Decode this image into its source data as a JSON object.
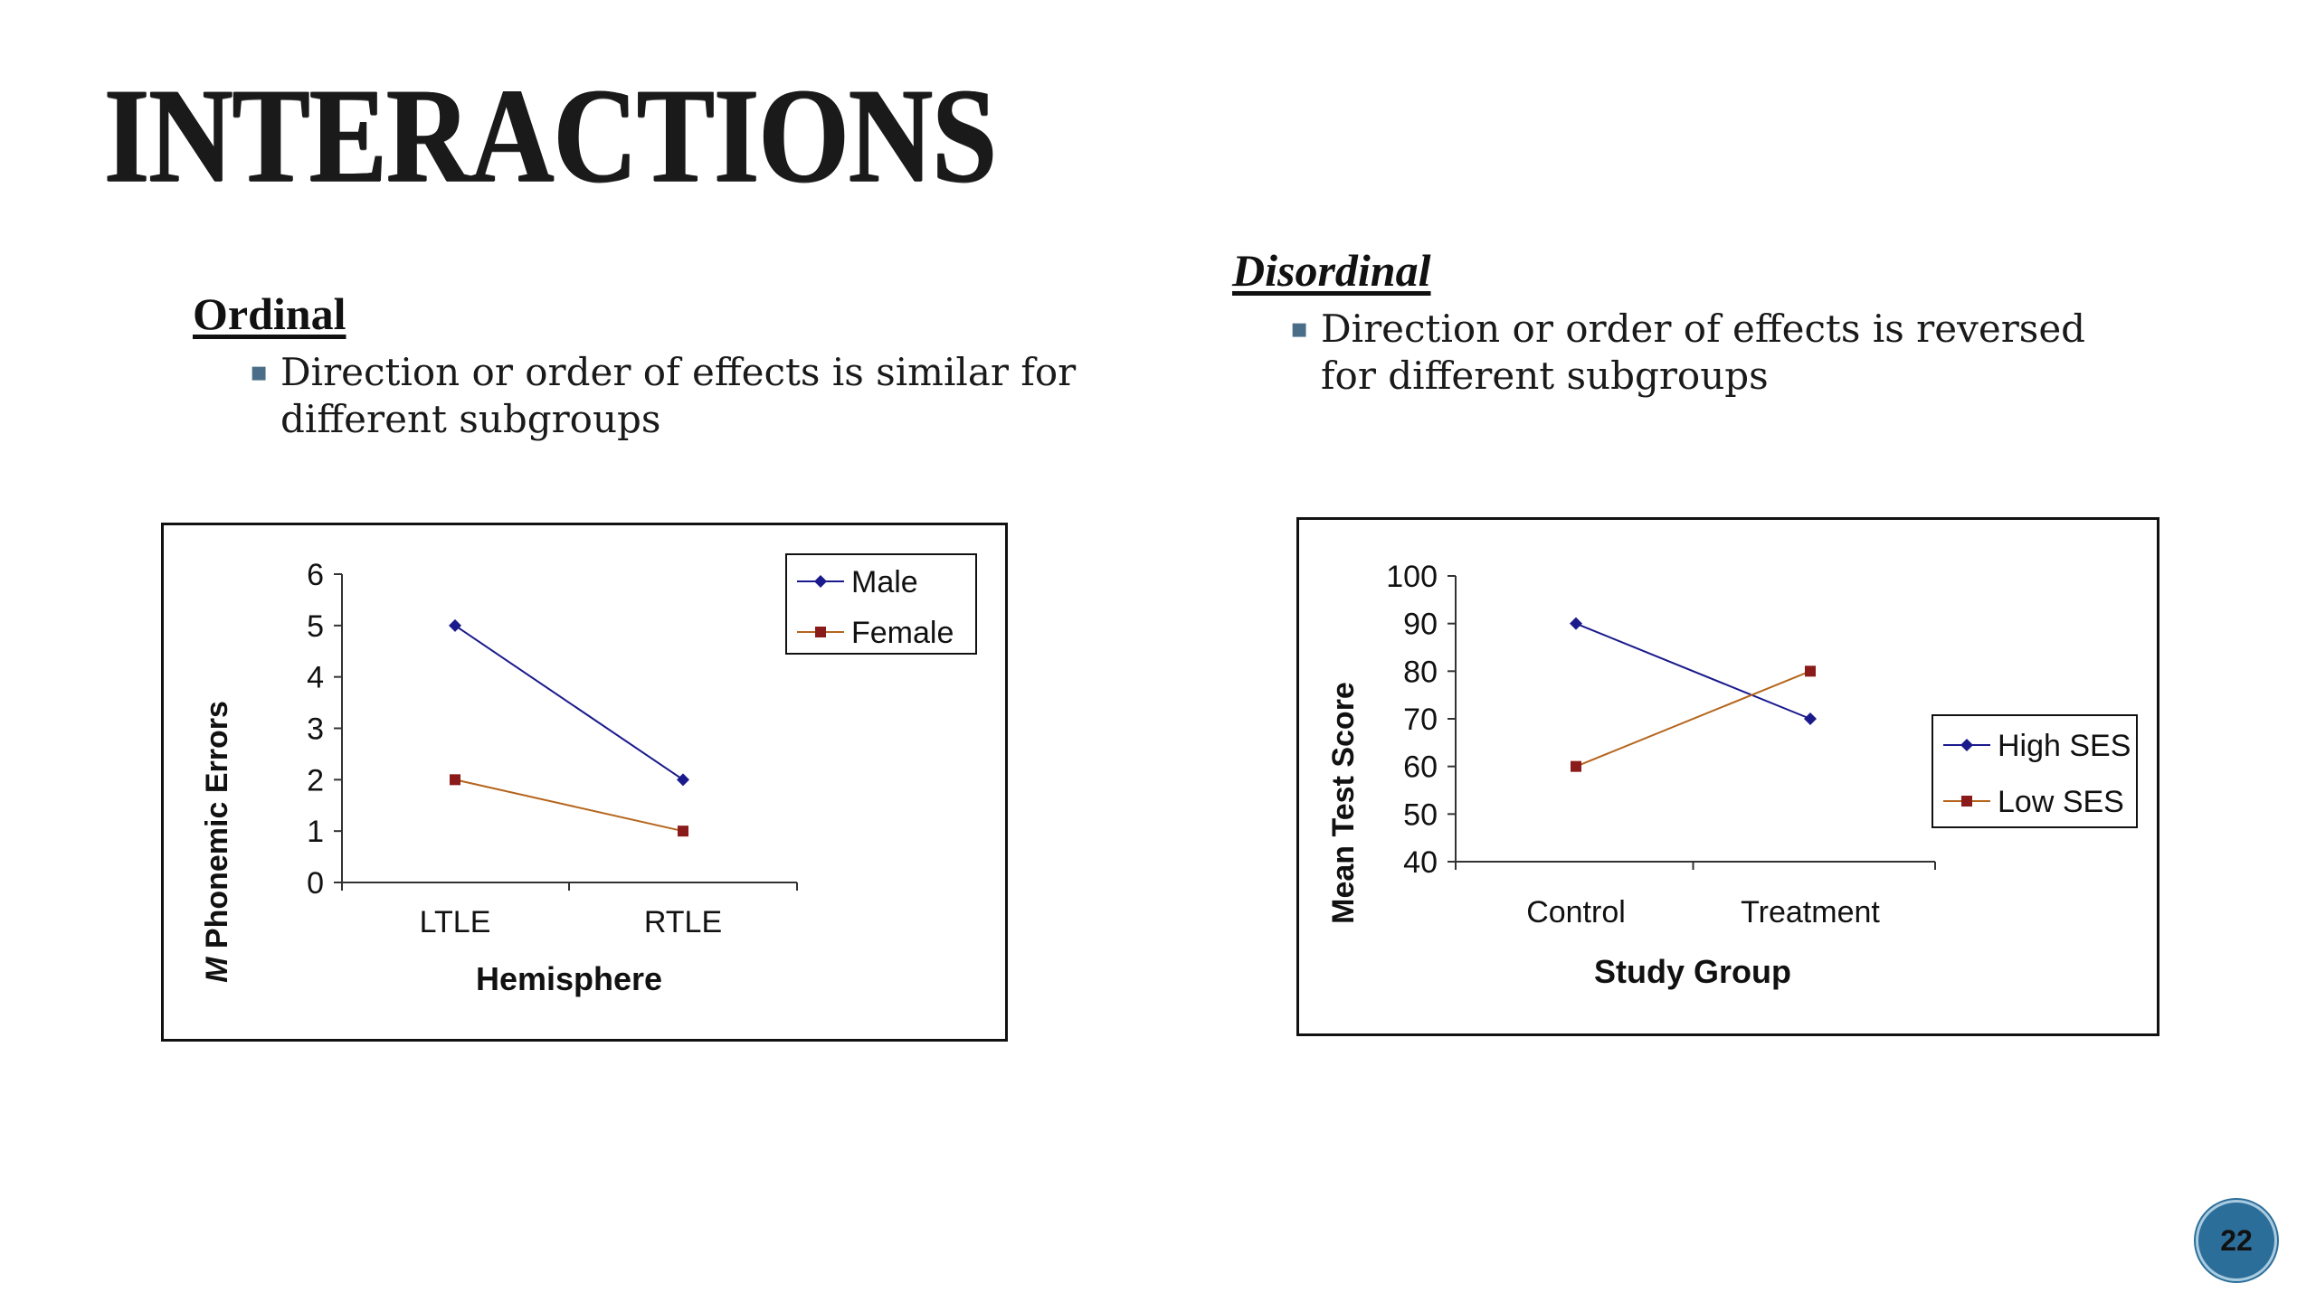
{
  "slide": {
    "title": "INTERACTIONS",
    "page_number": "22"
  },
  "sections": {
    "ordinal": {
      "heading": "Ordinal",
      "bullet": "Direction or order of effects is similar for different subgroups"
    },
    "disordinal": {
      "heading": "Disordinal",
      "bullet": "Direction or order of effects is reversed for different subgroups"
    }
  },
  "colors": {
    "series_blue": "#1a1a8c",
    "series_red": "#8b1a1a",
    "series_red_line": "#b5651d",
    "bullet_mark": "#4a6e88",
    "page_badge": "#2c6e9a"
  },
  "chart_data": [
    {
      "type": "line",
      "categories": [
        "LTLE",
        "RTLE"
      ],
      "series": [
        {
          "name": "Male",
          "values": [
            5,
            2
          ],
          "marker": "diamond"
        },
        {
          "name": "Female",
          "values": [
            2,
            1
          ],
          "marker": "square"
        }
      ],
      "xlabel": "Hemisphere",
      "ylabel_italic": "M",
      "ylabel": "Phonemic Errors",
      "ylim": [
        0,
        6
      ],
      "yticks": [
        "0",
        "1",
        "2",
        "3",
        "4",
        "5",
        "6"
      ],
      "grid": false,
      "legend": "top-right"
    },
    {
      "type": "line",
      "categories": [
        "Control",
        "Treatment"
      ],
      "series": [
        {
          "name": "High SES",
          "values": [
            90,
            70
          ],
          "marker": "diamond"
        },
        {
          "name": "Low SES",
          "values": [
            60,
            80
          ],
          "marker": "square"
        }
      ],
      "xlabel": "Study Group",
      "ylabel": "Mean Test Score",
      "ylim": [
        40,
        100
      ],
      "yticks": [
        "40",
        "50",
        "60",
        "70",
        "80",
        "90",
        "100"
      ],
      "grid": false,
      "legend": "right"
    }
  ]
}
